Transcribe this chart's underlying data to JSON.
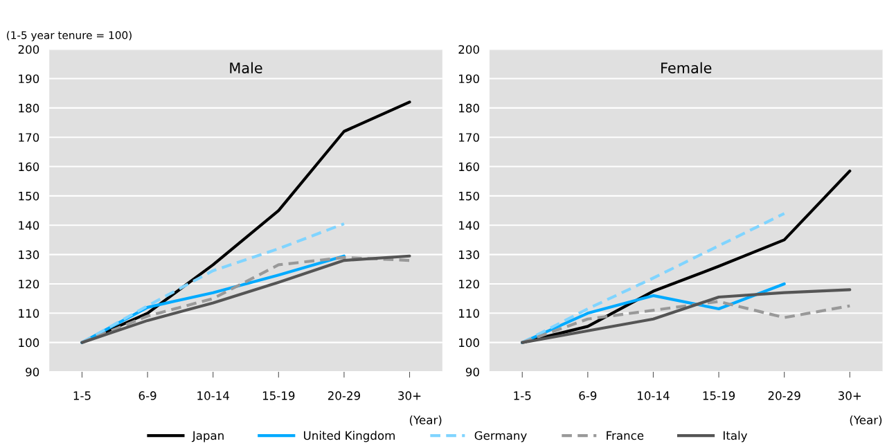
{
  "chart_data": [
    {
      "type": "line",
      "title": "Male",
      "ylabel": "(1-5 year tenure = 100)",
      "xlabel": "(Year)",
      "categories": [
        "1-5",
        "6-9",
        "10-14",
        "15-19",
        "20-29",
        "30+"
      ],
      "ylim": [
        90,
        200
      ],
      "yticks": [
        90,
        100,
        110,
        120,
        130,
        140,
        150,
        160,
        170,
        180,
        190,
        200
      ],
      "grid": "y",
      "legend": "bottom",
      "marker": "none",
      "series": [
        {
          "name": "Japan",
          "color": "#000000",
          "line_style": "solid",
          "values": [
            100,
            110,
            126.5,
            145,
            172,
            182
          ]
        },
        {
          "name": "United Kingdom",
          "color": "#00aaff",
          "line_style": "solid",
          "values": [
            100,
            112,
            117,
            123,
            129.5,
            null
          ]
        },
        {
          "name": "Germany",
          "color": "#80d4ff",
          "line_style": "dashed",
          "values": [
            100,
            112.5,
            124.5,
            132,
            140.5,
            null
          ]
        },
        {
          "name": "France",
          "color": "#999999",
          "line_style": "dashed",
          "values": [
            100,
            109,
            115,
            126.5,
            129,
            128
          ]
        },
        {
          "name": "Italy",
          "color": "#555555",
          "line_style": "solid",
          "values": [
            100,
            107.5,
            113.5,
            120.5,
            128,
            129.5
          ]
        }
      ]
    },
    {
      "type": "line",
      "title": "Female",
      "xlabel": "(Year)",
      "categories": [
        "1-5",
        "6-9",
        "10-14",
        "15-19",
        "20-29",
        "30+"
      ],
      "ylim": [
        90,
        200
      ],
      "yticks": [
        90,
        100,
        110,
        120,
        130,
        140,
        150,
        160,
        170,
        180,
        190,
        200
      ],
      "grid": "y",
      "legend": "bottom",
      "marker": "none",
      "series": [
        {
          "name": "Japan",
          "color": "#000000",
          "line_style": "solid",
          "values": [
            100,
            105.5,
            117.5,
            126,
            135,
            158.5
          ]
        },
        {
          "name": "United Kingdom",
          "color": "#00aaff",
          "line_style": "solid",
          "values": [
            100,
            110,
            116,
            111.5,
            120,
            null
          ]
        },
        {
          "name": "Germany",
          "color": "#80d4ff",
          "line_style": "dashed",
          "values": [
            100,
            111.5,
            122,
            133,
            144,
            null
          ]
        },
        {
          "name": "France",
          "color": "#999999",
          "line_style": "dashed",
          "values": [
            100,
            108,
            111,
            114,
            108.5,
            112.5
          ]
        },
        {
          "name": "Italy",
          "color": "#555555",
          "line_style": "solid",
          "values": [
            100,
            104,
            108,
            115.5,
            117,
            118
          ]
        }
      ]
    }
  ]
}
